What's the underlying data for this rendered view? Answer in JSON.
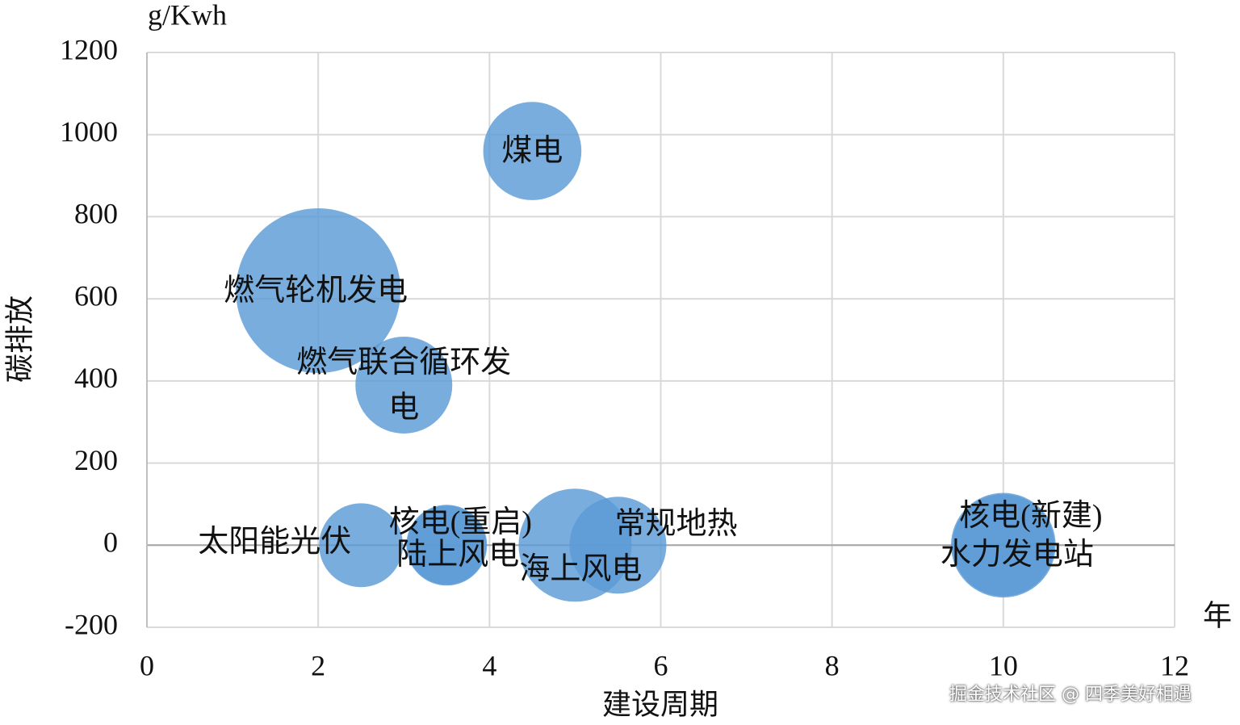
{
  "chart_data": {
    "type": "bubble",
    "y_unit": "g/Kwh",
    "y_label": "碳排放",
    "x_label": "建设周期",
    "x_unit": "年",
    "watermark": "掘金技术社区 @ 四季美好相遇",
    "categories": [
      "煤电",
      "燃气轮机发电",
      "燃气联合循环发电",
      "太阳能光伏",
      "核电(重启)",
      "陆上风电",
      "海上风电",
      "常规地热",
      "核电(新建)",
      "水力发电站"
    ],
    "x": [
      4.5,
      2,
      3,
      2.5,
      3.5,
      3.5,
      5,
      5.5,
      10,
      10
    ],
    "values": [
      960,
      620,
      390,
      0,
      0,
      0,
      0,
      0,
      0,
      0
    ],
    "sizes": [
      37,
      104,
      36,
      27,
      25,
      24,
      49,
      36,
      42,
      40
    ],
    "color": "#5b9bd5",
    "xlim": [
      0,
      12
    ],
    "xticks": [
      0,
      2,
      4,
      6,
      8,
      10,
      12
    ],
    "ylim": [
      -200,
      1200
    ],
    "yticks": [
      -200,
      0,
      200,
      400,
      600,
      800,
      1000,
      1200
    ],
    "grid": true
  }
}
